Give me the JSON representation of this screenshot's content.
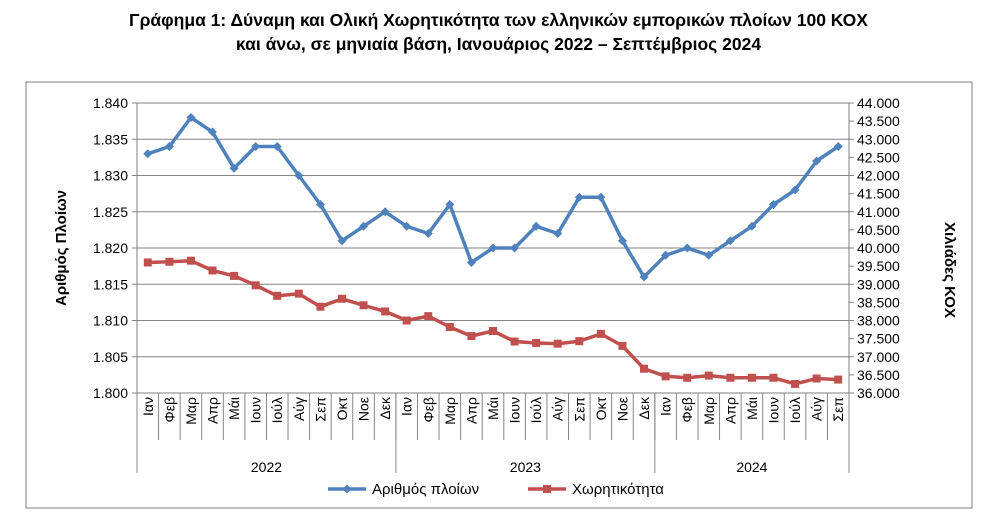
{
  "title_line1": "Γράφημα 1: Δύναμη και Ολική Χωρητικότητα των ελληνικών εμπορικών πλοίων 100 ΚΟΧ",
  "title_line2": "και άνω, σε μηνιαία βάση, Ιανουάριος 2022 – Σεπτέμβριος 2024",
  "chart_data": {
    "type": "line",
    "title": "Γράφημα 1: Δύναμη και Ολική Χωρητικότητα των ελληνικών εμπορικών πλοίων 100 ΚΟΧ και άνω, σε μηνιαία βάση, Ιανουάριος 2022 – Σεπτέμβριος 2024",
    "categories": [
      "Ιαν",
      "Φεβ",
      "Μαρ",
      "Απρ",
      "Μάι",
      "Ιουν",
      "Ιούλ",
      "Αύγ",
      "Σεπ",
      "Οκτ",
      "Νοε",
      "Δεκ",
      "Ιαν",
      "Φεβ",
      "Μαρ",
      "Απρ",
      "Μάι",
      "Ιουν",
      "Ιούλ",
      "Αύγ",
      "Σεπ",
      "Οκτ",
      "Νοε",
      "Δεκ",
      "Ιαν",
      "Φεβ",
      "Μαρ",
      "Απρ",
      "Μάι",
      "Ιουν",
      "Ιούλ",
      "Αύγ",
      "Σεπ"
    ],
    "year_groups": [
      {
        "label": "2022",
        "count": 12
      },
      {
        "label": "2023",
        "count": 12
      },
      {
        "label": "2024",
        "count": 9
      }
    ],
    "ylabel": "Αριθμός Πλοίων",
    "y2label": "Χιλιάδες ΚΟΧ",
    "ylim": [
      1800,
      1840
    ],
    "y2lim": [
      36000,
      44000
    ],
    "yticks": [
      1800,
      1805,
      1810,
      1815,
      1820,
      1825,
      1830,
      1835,
      1840
    ],
    "yticklabels": [
      "1.800",
      "1.805",
      "1.810",
      "1.815",
      "1.820",
      "1.825",
      "1.830",
      "1.835",
      "1.840"
    ],
    "y2ticks": [
      36000,
      36500,
      37000,
      37500,
      38000,
      38500,
      39000,
      39500,
      40000,
      40500,
      41000,
      41500,
      42000,
      42500,
      43000,
      43500,
      44000
    ],
    "y2ticklabels": [
      "36.000",
      "36.500",
      "37.000",
      "37.500",
      "38.000",
      "38.500",
      "39.000",
      "39.500",
      "40.000",
      "40.500",
      "41.000",
      "41.500",
      "42.000",
      "42.500",
      "43.000",
      "43.500",
      "44.000"
    ],
    "grid": "horizontal",
    "legend_position": "bottom",
    "series": [
      {
        "name": "Αριθμός πλοίων",
        "axis": "left",
        "color": "#4f81bd",
        "marker": "diamond",
        "values": [
          1833,
          1834,
          1838,
          1836,
          1831,
          1834,
          1834,
          1830,
          1826,
          1821,
          1823,
          1825,
          1823,
          1822,
          1826,
          1818,
          1820,
          1820,
          1823,
          1822,
          1827,
          1827,
          1821,
          1816,
          1819,
          1820,
          1819,
          1821,
          1823,
          1826,
          1828,
          1832,
          1834
        ]
      },
      {
        "name": "Χωρητικότητα",
        "axis": "right",
        "color": "#c0504d",
        "marker": "square",
        "values": [
          39600,
          39620,
          39650,
          39380,
          39230,
          38970,
          38680,
          38740,
          38380,
          38600,
          38420,
          38250,
          38000,
          38120,
          37820,
          37570,
          37710,
          37420,
          37380,
          37360,
          37430,
          37630,
          37300,
          36670,
          36460,
          36420,
          36480,
          36420,
          36420,
          36420,
          36250,
          36400,
          36370
        ]
      }
    ]
  }
}
